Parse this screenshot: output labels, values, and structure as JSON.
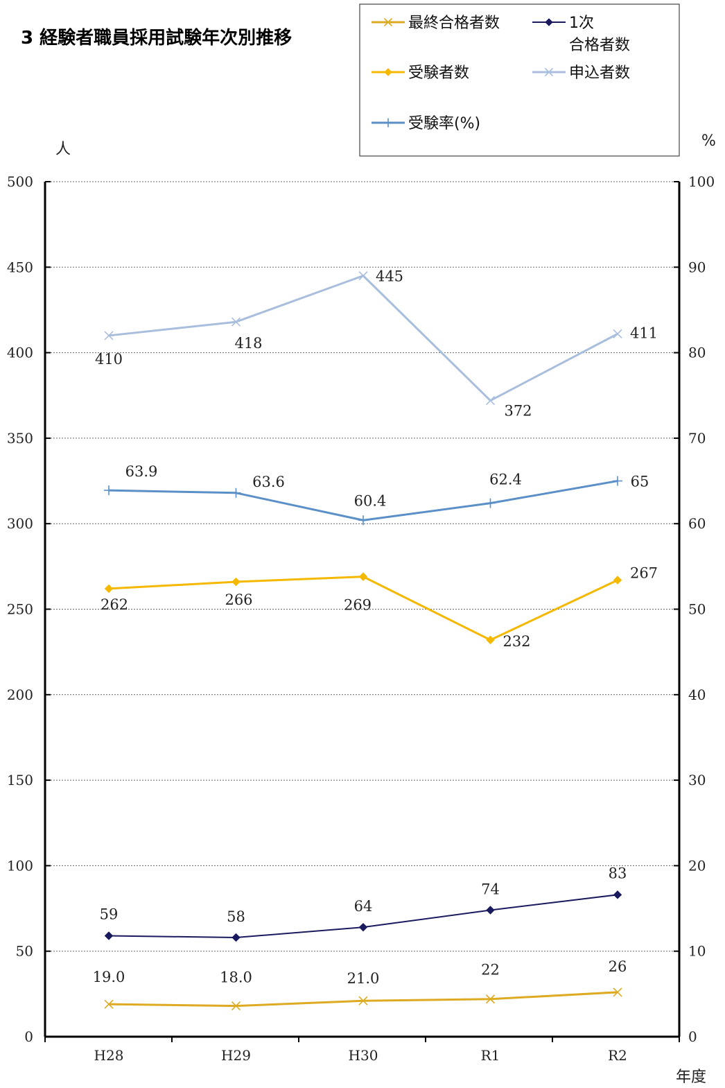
{
  "chart_data": {
    "type": "line",
    "title": "3 経験者職員採用試験年次別推移",
    "left_unit": "人",
    "right_unit": "%",
    "x_axis_label": "年度",
    "categories": [
      "H28",
      "H29",
      "H30",
      "R1",
      "R2"
    ],
    "left_ylim": [
      0,
      500
    ],
    "left_ticks": [
      0,
      50,
      100,
      150,
      200,
      250,
      300,
      350,
      400,
      450,
      500
    ],
    "right_ylim": [
      0,
      100
    ],
    "right_ticks": [
      0,
      10,
      20,
      30,
      40,
      50,
      60,
      70,
      80,
      90,
      100
    ],
    "grid": true,
    "legend_position": "top-right",
    "series": [
      {
        "name": "最終合格者数",
        "axis": "left",
        "color": "#DDAA22",
        "marker": "x",
        "values": [
          19,
          18,
          21,
          22,
          26
        ],
        "labels": [
          "19.0",
          "18.0",
          "21.0",
          "22",
          "26"
        ]
      },
      {
        "name": "1次合格者数",
        "legend_lines": [
          "1次",
          "合格者数"
        ],
        "axis": "left",
        "color": "#1A1A5E",
        "marker": "diamond",
        "values": [
          59,
          58,
          64,
          74,
          83
        ],
        "labels": [
          "59",
          "58",
          "64",
          "74",
          "83"
        ]
      },
      {
        "name": "受験者数",
        "axis": "left",
        "color": "#F5B800",
        "marker": "diamond",
        "values": [
          262,
          266,
          269,
          232,
          267
        ],
        "labels": [
          "262",
          "266",
          "269",
          "232",
          "267"
        ]
      },
      {
        "name": "申込者数",
        "axis": "left",
        "color": "#A9BEDC",
        "marker": "x",
        "values": [
          410,
          418,
          445,
          372,
          411
        ],
        "labels": [
          "410",
          "418",
          "445",
          "372",
          "411"
        ]
      },
      {
        "name": "受験率(%)",
        "axis": "right",
        "color": "#5B8FC7",
        "marker": "plus",
        "values": [
          63.9,
          63.6,
          60.4,
          62.4,
          65
        ],
        "labels": [
          "63.9",
          "63.6",
          "60.4",
          "62.4",
          "65"
        ]
      }
    ]
  }
}
